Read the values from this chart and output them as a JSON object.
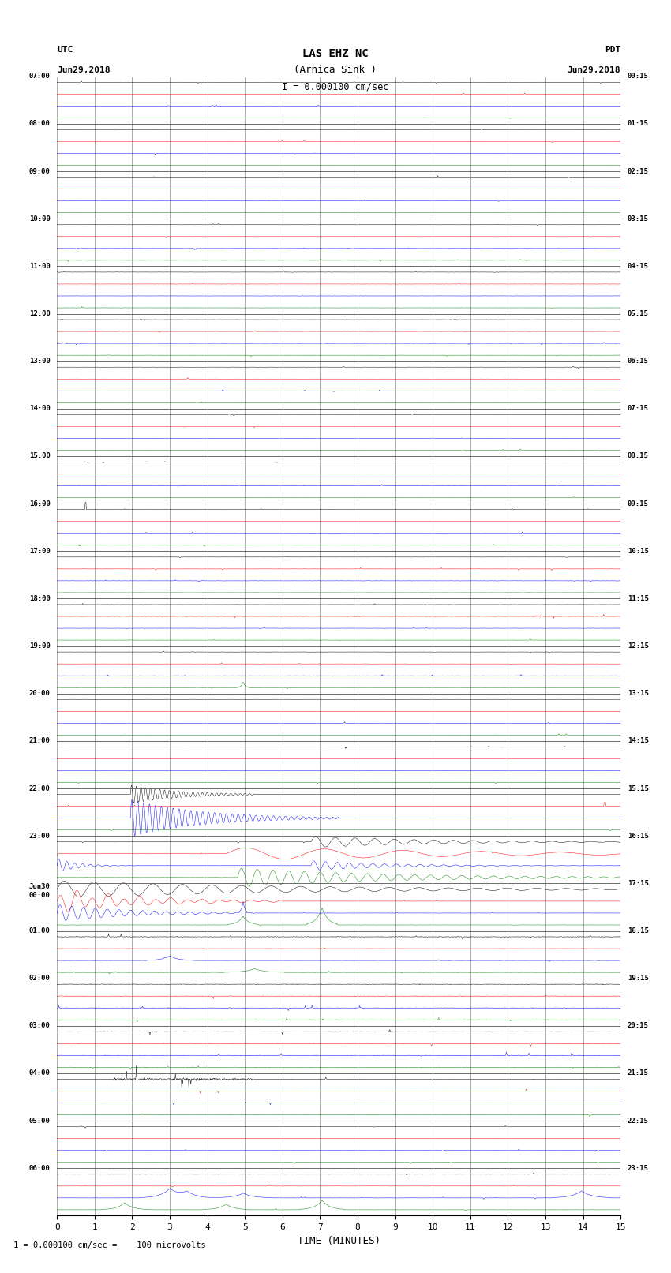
{
  "title_line1": "LAS EHZ NC",
  "title_line2": "(Arnica Sink )",
  "title_scale": "I = 0.000100 cm/sec",
  "left_header_line1": "UTC",
  "left_header_line2": "Jun29,2018",
  "right_header_line1": "PDT",
  "right_header_line2": "Jun29,2018",
  "footer_note": "1 = 0.000100 cm/sec =    100 microvolts",
  "xlabel": "TIME (MINUTES)",
  "left_times": [
    "07:00",
    "08:00",
    "09:00",
    "10:00",
    "11:00",
    "12:00",
    "13:00",
    "14:00",
    "15:00",
    "16:00",
    "17:00",
    "18:00",
    "19:00",
    "20:00",
    "21:00",
    "22:00",
    "23:00",
    "Jun30\n00:00",
    "01:00",
    "02:00",
    "03:00",
    "04:00",
    "05:00",
    "06:00"
  ],
  "right_times": [
    "00:15",
    "01:15",
    "02:15",
    "03:15",
    "04:15",
    "05:15",
    "06:15",
    "07:15",
    "08:15",
    "09:15",
    "10:15",
    "11:15",
    "12:15",
    "13:15",
    "14:15",
    "15:15",
    "16:15",
    "17:15",
    "18:15",
    "19:15",
    "20:15",
    "21:15",
    "22:15",
    "23:15"
  ],
  "n_rows": 24,
  "n_minutes": 15,
  "traces_per_row": 4,
  "colors_cycle": [
    "black",
    "red",
    "blue",
    "green"
  ],
  "bg_color": "white",
  "grid_color": "#888888",
  "noise_amp": 0.04,
  "seed": 12345
}
